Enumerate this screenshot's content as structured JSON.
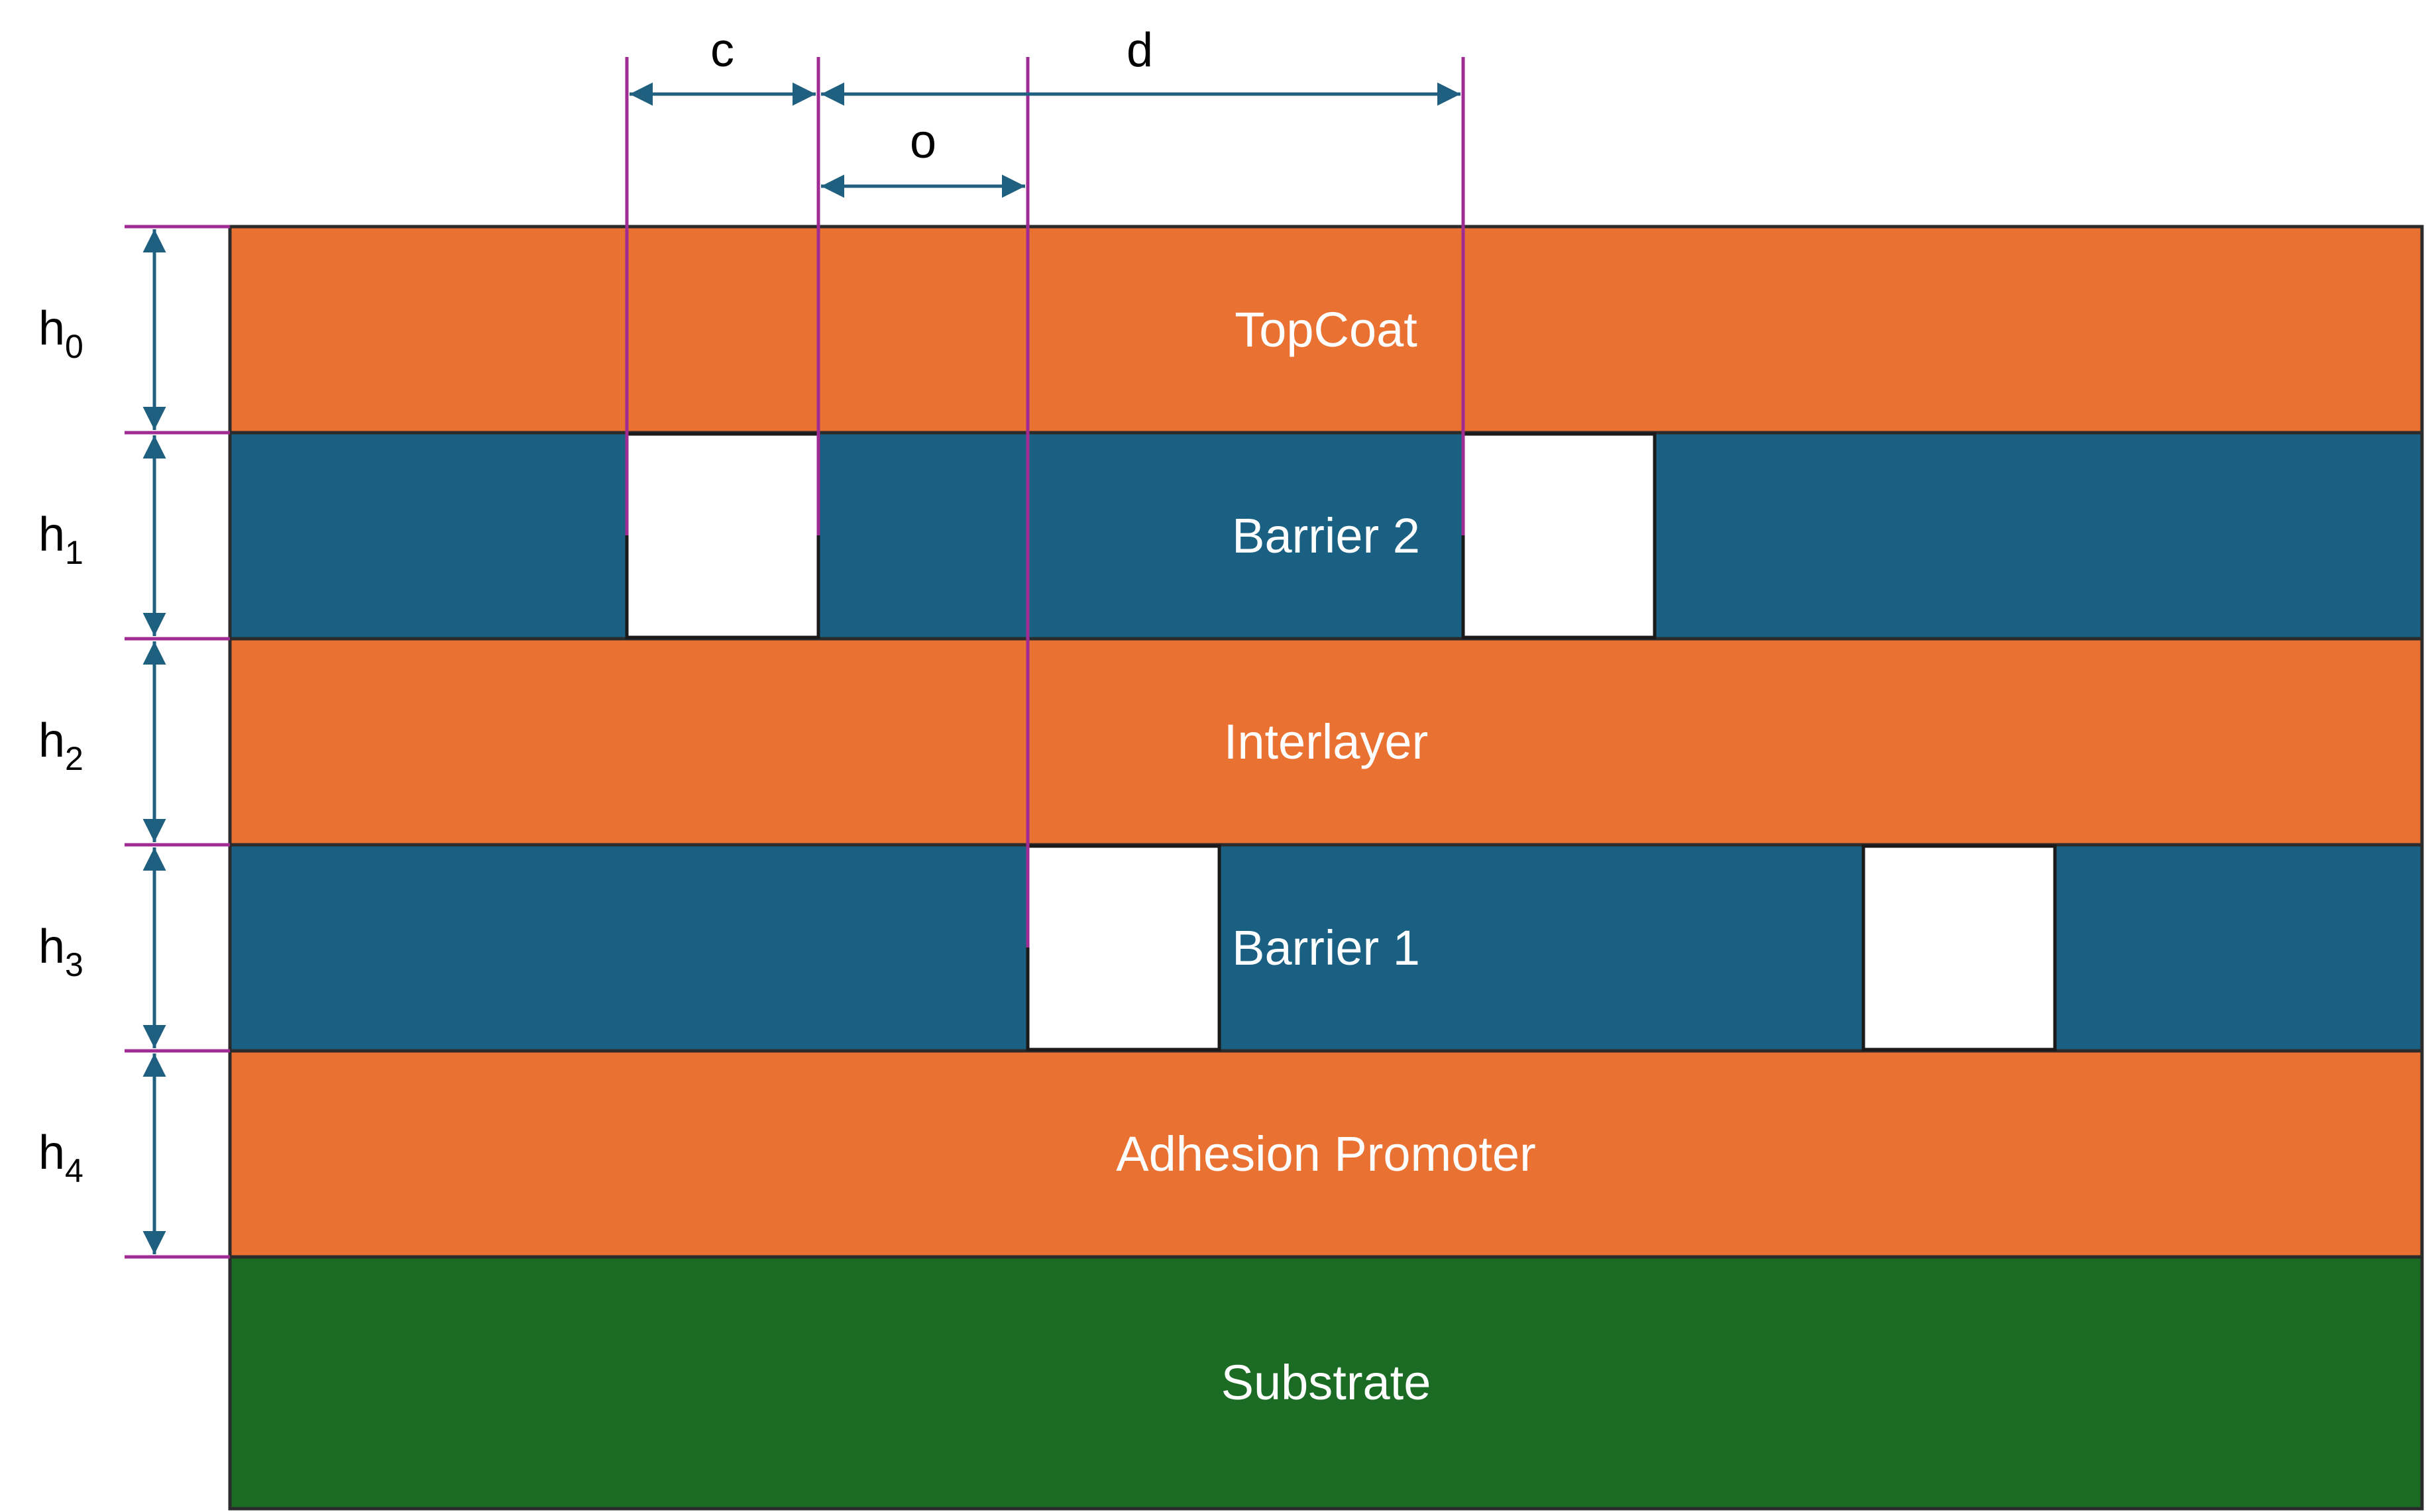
{
  "colors": {
    "orange": "#E97132",
    "blue": "#196082",
    "green": "#1C6B25",
    "gap": "#FFFFFF",
    "layer_border": "#2b2b2b",
    "magenta": "#A02B93",
    "dimension_arrow": "#1F5F80"
  },
  "layers": [
    {
      "name": "TopCoat",
      "color": "orange"
    },
    {
      "name": "Barrier 2",
      "color": "blue"
    },
    {
      "name": "Interlayer",
      "color": "orange"
    },
    {
      "name": "Barrier 1",
      "color": "blue"
    },
    {
      "name": "Adhesion Promoter",
      "color": "orange"
    },
    {
      "name": "Substrate",
      "color": "green"
    }
  ],
  "thickness_labels": [
    {
      "base": "h",
      "sub": "0"
    },
    {
      "base": "h",
      "sub": "1"
    },
    {
      "base": "h",
      "sub": "2"
    },
    {
      "base": "h",
      "sub": "3"
    },
    {
      "base": "h",
      "sub": "4"
    }
  ],
  "dimension_labels": {
    "c": "c",
    "o": "o",
    "d": "d"
  }
}
